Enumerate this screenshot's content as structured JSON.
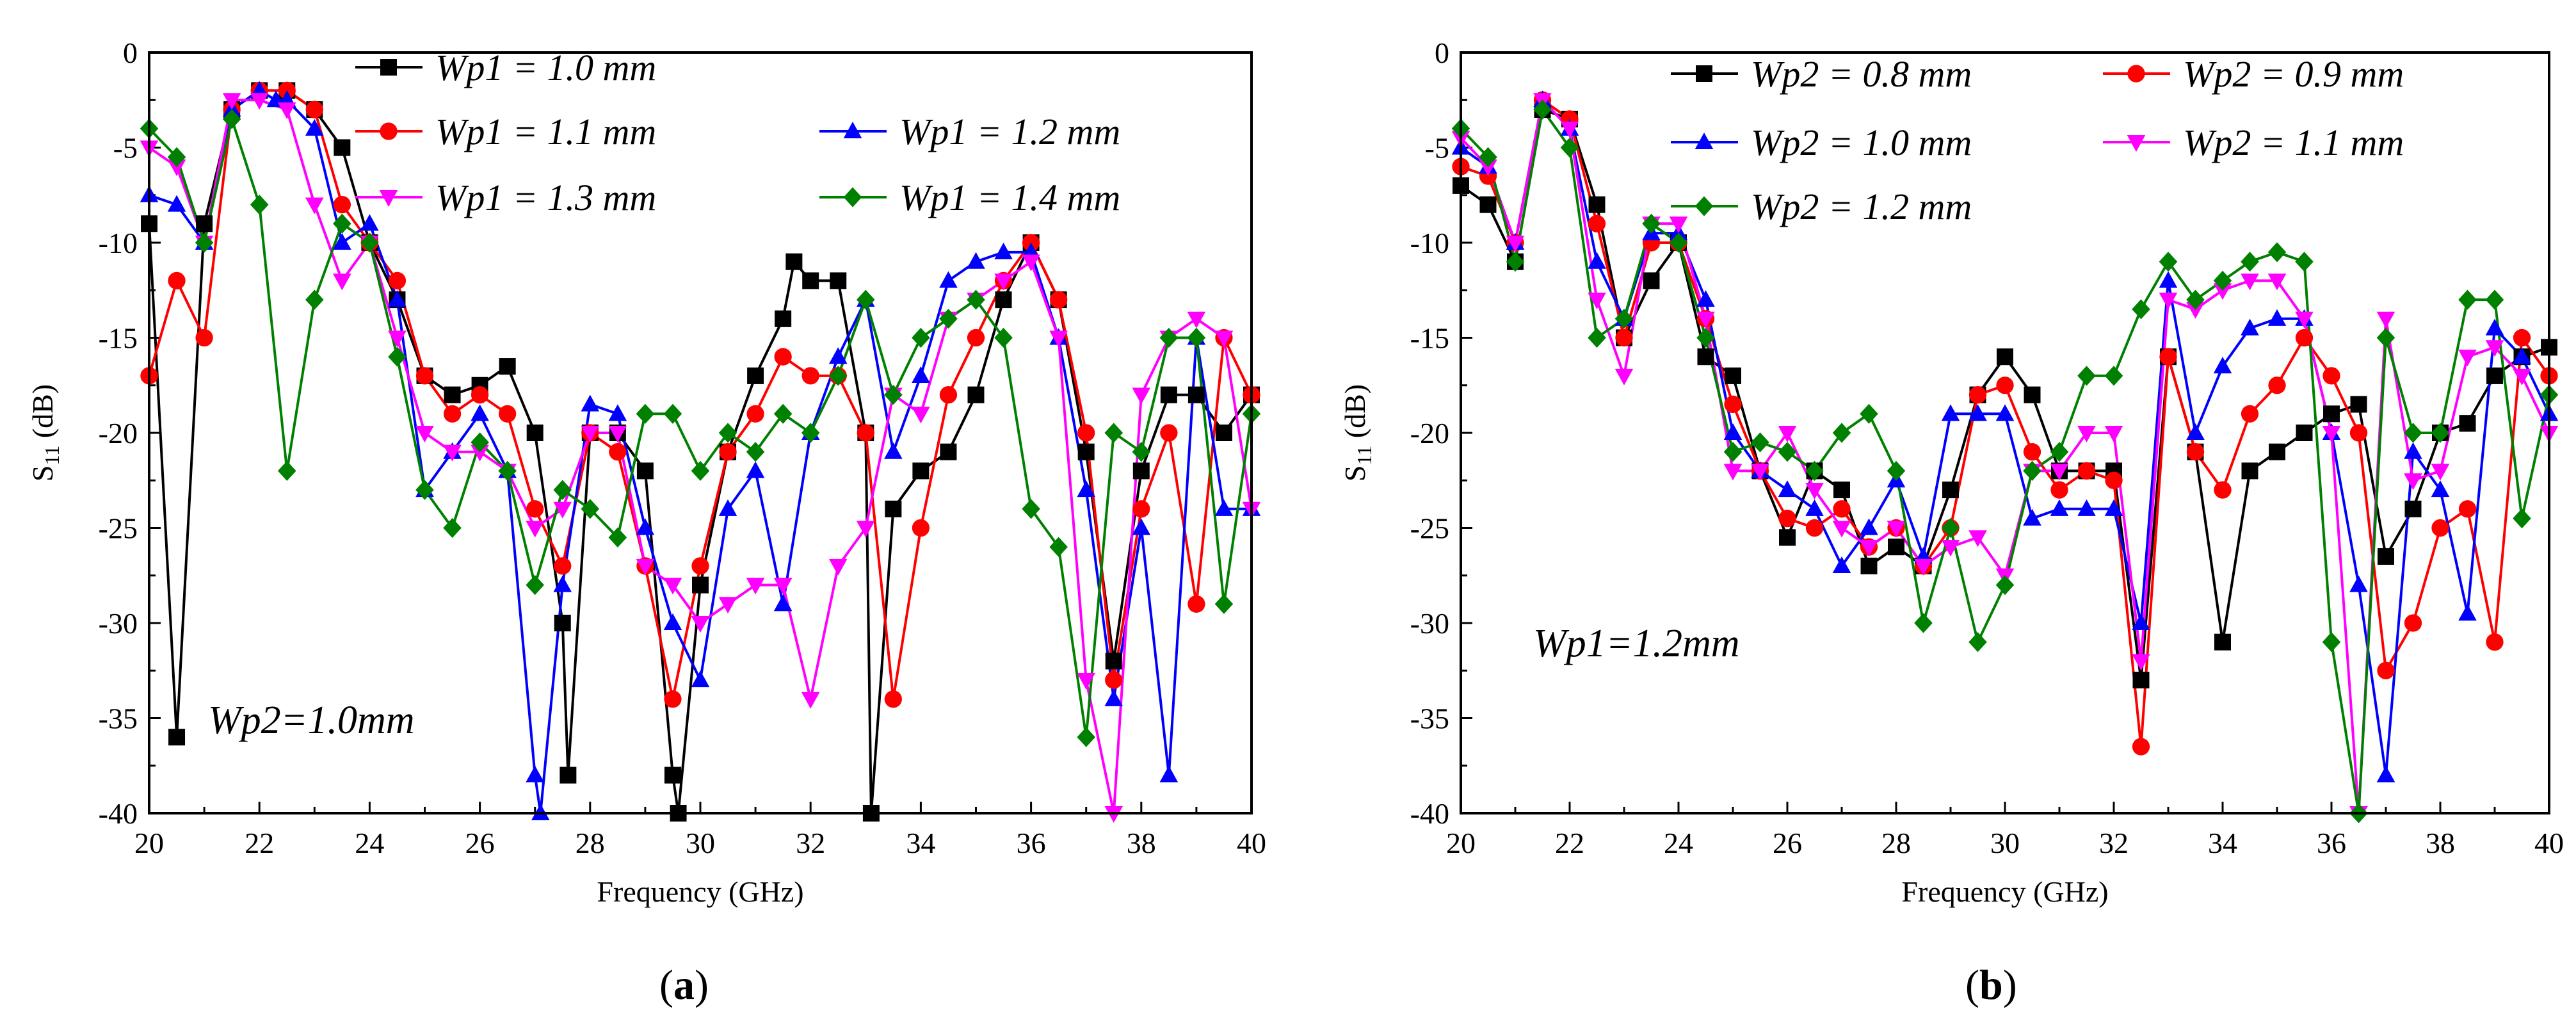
{
  "chart_data": [
    {
      "type": "line",
      "panel": "a",
      "xlabel": "Frequency (GHz)",
      "ylabel": {
        "base": "S",
        "sub": "11",
        "rest": " (dB)"
      },
      "xlim": [
        20,
        40
      ],
      "ylim": [
        -40,
        0
      ],
      "xticks": [
        20,
        22,
        24,
        26,
        28,
        30,
        32,
        34,
        36,
        38,
        40
      ],
      "yticks": [
        0,
        -5,
        -10,
        -15,
        -20,
        -25,
        -30,
        -35,
        -40
      ],
      "xtick_labels": [
        "20",
        "22",
        "24",
        "26",
        "28",
        "30",
        "32",
        "34",
        "36",
        "38",
        "40"
      ],
      "ytick_labels": [
        "0",
        "-5",
        "-10",
        "-15",
        "-20",
        "-25",
        "-30",
        "-35",
        "-40"
      ],
      "annotation": "Wp2=1.0mm",
      "caption_prefix": "(",
      "caption_letter": "a",
      "caption_suffix": ")",
      "series": [
        {
          "name": "Wp1 = 1.0 mm",
          "color": "#000000",
          "marker": "square",
          "x": [
            20,
            20.5,
            21,
            21.5,
            22,
            22.5,
            23,
            23.5,
            24,
            24.5,
            25,
            25.5,
            26,
            26.5,
            27,
            27.5,
            27.6,
            28,
            28.5,
            29,
            29.5,
            29.6,
            30,
            30.5,
            31,
            31.5,
            31.7,
            32,
            32.5,
            33,
            33.1,
            33.5,
            34,
            34.5,
            35,
            35.5,
            36,
            36.5,
            37,
            37.5,
            38,
            38.5,
            39,
            39.5,
            40
          ],
          "y": [
            -9,
            -36,
            -9,
            -3,
            -2,
            -2,
            -3,
            -5,
            -10,
            -13,
            -17,
            -18,
            -17.5,
            -16.5,
            -20,
            -30,
            -38,
            -20,
            -20,
            -22,
            -38,
            -40,
            -28,
            -21,
            -17,
            -14,
            -11,
            -12,
            -12,
            -20,
            -40,
            -24,
            -22,
            -21,
            -18,
            -13,
            -10,
            -13,
            -21,
            -32,
            -22,
            -18,
            -18,
            -20,
            -18
          ]
        },
        {
          "name": "Wp1 = 1.1 mm",
          "color": "#ff0000",
          "marker": "circle",
          "x": [
            20,
            20.5,
            21,
            21.5,
            22,
            22.5,
            23,
            23.5,
            24,
            24.5,
            25,
            25.5,
            26,
            26.5,
            27,
            27.5,
            28,
            28.5,
            29,
            29.5,
            30,
            30.5,
            31,
            31.5,
            32,
            32.5,
            33,
            33.5,
            34,
            34.5,
            35,
            35.5,
            36,
            36.5,
            37,
            37.5,
            38,
            38.5,
            39,
            39.5,
            40
          ],
          "y": [
            -17,
            -12,
            -15,
            -3,
            -2,
            -2,
            -3,
            -8,
            -10,
            -12,
            -17,
            -19,
            -18,
            -19,
            -24,
            -27,
            -20,
            -21,
            -27,
            -34,
            -27,
            -21,
            -19,
            -16,
            -17,
            -17,
            -20,
            -34,
            -25,
            -18,
            -15,
            -12,
            -10,
            -13,
            -20,
            -33,
            -24,
            -20,
            -29,
            -15,
            -18
          ]
        },
        {
          "name": "Wp1 = 1.2 mm",
          "color": "#0000ff",
          "marker": "triangle-up",
          "x": [
            20,
            20.5,
            21,
            21.5,
            22,
            22.3,
            22.5,
            23,
            23.5,
            24,
            24.5,
            25,
            25.5,
            26,
            26.5,
            27,
            27.1,
            27.5,
            28,
            28.5,
            29,
            29.5,
            30,
            30.5,
            31,
            31.5,
            32,
            32.5,
            33,
            33.5,
            34,
            34.5,
            35,
            35.5,
            36,
            36.5,
            37,
            37.5,
            38,
            38.5,
            39,
            39.5,
            40
          ],
          "y": [
            -7.5,
            -8,
            -10,
            -3,
            -2,
            -2.5,
            -2.5,
            -4,
            -10,
            -9,
            -13,
            -23,
            -21,
            -19,
            -22,
            -38,
            -40,
            -28,
            -18.5,
            -19,
            -25,
            -30,
            -33,
            -24,
            -22,
            -29,
            -20,
            -16,
            -13,
            -21,
            -17,
            -12,
            -11,
            -10.5,
            -10.5,
            -15,
            -23,
            -34,
            -25,
            -38,
            -15,
            -24,
            -24
          ]
        },
        {
          "name": "Wp1 = 1.3 mm",
          "color": "#ff00ff",
          "marker": "triangle-down",
          "x": [
            20,
            20.5,
            21,
            21.5,
            22,
            22.5,
            23,
            23.5,
            24,
            24.5,
            25,
            25.5,
            26,
            26.5,
            27,
            27.5,
            28,
            28.5,
            29,
            29.5,
            30,
            30.5,
            31,
            31.5,
            32,
            32.5,
            33,
            33.5,
            34,
            34.5,
            35,
            35.5,
            36,
            36.5,
            37,
            37.5,
            38,
            38.5,
            39,
            39.5,
            40
          ],
          "y": [
            -5,
            -6,
            -10,
            -2.5,
            -2.5,
            -3,
            -8,
            -12,
            -10,
            -15,
            -20,
            -21,
            -21,
            -22,
            -25,
            -24,
            -20,
            -20,
            -27,
            -28,
            -30,
            -29,
            -28,
            -28,
            -34,
            -27,
            -25,
            -18,
            -19,
            -14,
            -13,
            -12,
            -11,
            -15,
            -33,
            -40,
            -18,
            -15,
            -14,
            -15,
            -24
          ]
        },
        {
          "name": "Wp1 = 1.4 mm",
          "color": "#008000",
          "marker": "diamond",
          "x": [
            20,
            20.5,
            21,
            21.5,
            22,
            22.5,
            23,
            23.5,
            24,
            24.5,
            25,
            25.5,
            26,
            26.5,
            27,
            27.5,
            28,
            28.5,
            29,
            29.5,
            30,
            30.5,
            31,
            31.5,
            32,
            32.5,
            33,
            33.5,
            34,
            34.5,
            35,
            35.5,
            36,
            36.5,
            37,
            37.5,
            38,
            38.5,
            39,
            39.5,
            40
          ],
          "y": [
            -4,
            -5.5,
            -10,
            -3.5,
            -8,
            -22,
            -13,
            -9,
            -10,
            -16,
            -23,
            -25,
            -20.5,
            -22,
            -28,
            -23,
            -24,
            -25.5,
            -19,
            -19,
            -22,
            -20,
            -21,
            -19,
            -20,
            -17,
            -13,
            -18,
            -15,
            -14,
            -13,
            -15,
            -24,
            -26,
            -36,
            -20,
            -21,
            -15,
            -15,
            -29,
            -19
          ]
        }
      ]
    },
    {
      "type": "line",
      "panel": "b",
      "xlabel": "Frequency (GHz)",
      "ylabel": {
        "base": "S",
        "sub": "11",
        "rest": " (dB)"
      },
      "xlim": [
        20,
        40
      ],
      "ylim": [
        -40,
        0
      ],
      "xticks": [
        20,
        22,
        24,
        26,
        28,
        30,
        32,
        34,
        36,
        38,
        40
      ],
      "yticks": [
        0,
        -5,
        -10,
        -15,
        -20,
        -25,
        -30,
        -35,
        -40
      ],
      "xtick_labels": [
        "20",
        "22",
        "24",
        "26",
        "28",
        "30",
        "32",
        "34",
        "36",
        "38",
        "40"
      ],
      "ytick_labels": [
        "0",
        "-5",
        "-10",
        "-15",
        "-20",
        "-25",
        "-30",
        "-35",
        "-40"
      ],
      "annotation": "Wp1=1.2mm",
      "caption_prefix": "(",
      "caption_letter": "b",
      "caption_suffix": ")",
      "series": [
        {
          "name": "Wp2 = 0.8 mm",
          "color": "#000000",
          "marker": "square",
          "x": [
            20,
            20.5,
            21,
            21.5,
            22,
            22.5,
            23,
            23.5,
            24,
            24.5,
            25,
            25.5,
            26,
            26.5,
            27,
            27.5,
            28,
            28.5,
            29,
            29.5,
            30,
            30.5,
            31,
            31.5,
            32,
            32.5,
            33,
            33.5,
            34,
            34.5,
            35,
            35.5,
            36,
            36.5,
            37,
            37.5,
            38,
            38.5,
            39,
            39.5,
            40
          ],
          "y": [
            -7,
            -8,
            -11,
            -3,
            -3.5,
            -8,
            -15,
            -12,
            -10,
            -16,
            -17,
            -22,
            -25.5,
            -22,
            -23,
            -27,
            -26,
            -27,
            -23,
            -18,
            -16,
            -18,
            -22,
            -22,
            -22,
            -33,
            -16,
            -21,
            -31,
            -22,
            -21,
            -20,
            -19,
            -18.5,
            -26.5,
            -24,
            -20,
            -19.5,
            -17,
            -16,
            -15.5
          ]
        },
        {
          "name": "Wp2 = 0.9 mm",
          "color": "#ff0000",
          "marker": "circle",
          "x": [
            20,
            20.5,
            21,
            21.5,
            22,
            22.5,
            23,
            23.5,
            24,
            24.5,
            25,
            25.5,
            26,
            26.5,
            27,
            27.5,
            28,
            28.5,
            29,
            29.5,
            30,
            30.5,
            31,
            31.5,
            32,
            32.5,
            33,
            33.5,
            34,
            34.5,
            35,
            35.5,
            36,
            36.5,
            37,
            37.5,
            38,
            38.5,
            39,
            39.5,
            40
          ],
          "y": [
            -6,
            -6.5,
            -10,
            -2.5,
            -3.5,
            -9,
            -15,
            -10,
            -10,
            -14,
            -18.5,
            -22,
            -24.5,
            -25,
            -24,
            -26,
            -25,
            -27,
            -25,
            -18,
            -17.5,
            -21,
            -23,
            -22,
            -22.5,
            -36.5,
            -16,
            -21,
            -23,
            -19,
            -17.5,
            -15,
            -17,
            -20,
            -32.5,
            -30,
            -25,
            -24,
            -31,
            -15,
            -17
          ]
        },
        {
          "name": "Wp2 = 1.0 mm",
          "color": "#0000ff",
          "marker": "triangle-up",
          "x": [
            20,
            20.5,
            21,
            21.5,
            22,
            22.5,
            23,
            23.5,
            24,
            24.5,
            25,
            25.5,
            26,
            26.5,
            27,
            27.5,
            28,
            28.5,
            29,
            29.5,
            30,
            30.5,
            31,
            31.5,
            32,
            32.5,
            33,
            33.5,
            34,
            34.5,
            35,
            35.5,
            36,
            36.5,
            37,
            37.5,
            38,
            38.5,
            39,
            39.5,
            40
          ],
          "y": [
            -5,
            -6,
            -10,
            -2.5,
            -4,
            -11,
            -14,
            -9.5,
            -9.5,
            -13,
            -20,
            -22,
            -23,
            -24,
            -27,
            -25,
            -22.5,
            -26.5,
            -19,
            -19,
            -19,
            -24.5,
            -24,
            -24,
            -24,
            -30,
            -12,
            -20,
            -16.5,
            -14.5,
            -14,
            -14,
            -20,
            -28,
            -38,
            -21,
            -23,
            -29.5,
            -14.5,
            -16,
            -19
          ]
        },
        {
          "name": "Wp2 = 1.1 mm",
          "color": "#ff00ff",
          "marker": "triangle-down",
          "x": [
            20,
            20.5,
            21,
            21.5,
            22,
            22.5,
            23,
            23.5,
            24,
            24.5,
            25,
            25.5,
            26,
            26.5,
            27,
            27.5,
            28,
            28.5,
            29,
            29.5,
            30,
            30.5,
            31,
            31.5,
            32,
            32.5,
            33,
            33.5,
            34,
            34.5,
            35,
            35.5,
            36,
            36.5,
            37,
            37.5,
            38,
            38.5,
            39,
            39.5,
            40
          ],
          "y": [
            -4.5,
            -6,
            -10,
            -2.5,
            -4,
            -13,
            -17,
            -9,
            -9,
            -14,
            -22,
            -22,
            -20,
            -23,
            -25,
            -26,
            -25,
            -27,
            -26,
            -25.5,
            -27.5,
            -22,
            -22,
            -20,
            -20,
            -32,
            -13,
            -13.5,
            -12.5,
            -12,
            -12,
            -14,
            -20,
            -40,
            -14,
            -22.5,
            -22,
            -16,
            -15.5,
            -17,
            -20
          ]
        },
        {
          "name": "Wp2 = 1.2 mm",
          "color": "#008000",
          "marker": "diamond",
          "x": [
            20,
            20.5,
            21,
            21.5,
            22,
            22.5,
            23,
            23.5,
            24,
            24.5,
            25,
            25.5,
            26,
            26.5,
            27,
            27.5,
            28,
            28.5,
            29,
            29.5,
            30,
            30.5,
            31,
            31.5,
            32,
            32.5,
            33,
            33.5,
            34,
            34.5,
            35,
            35.5,
            36,
            36.5,
            37,
            37.5,
            38,
            38.5,
            39,
            39.5,
            40
          ],
          "y": [
            -4,
            -5.5,
            -11,
            -3,
            -5,
            -15,
            -14,
            -9,
            -10,
            -15,
            -21,
            -20.5,
            -21,
            -22,
            -20,
            -19,
            -22,
            -30,
            -25,
            -31,
            -28,
            -22,
            -21,
            -17,
            -17,
            -13.5,
            -11,
            -13,
            -12,
            -11,
            -10.5,
            -11,
            -31,
            -40,
            -15,
            -20,
            -20,
            -13,
            -13,
            -24.5,
            -18
          ]
        }
      ]
    }
  ]
}
